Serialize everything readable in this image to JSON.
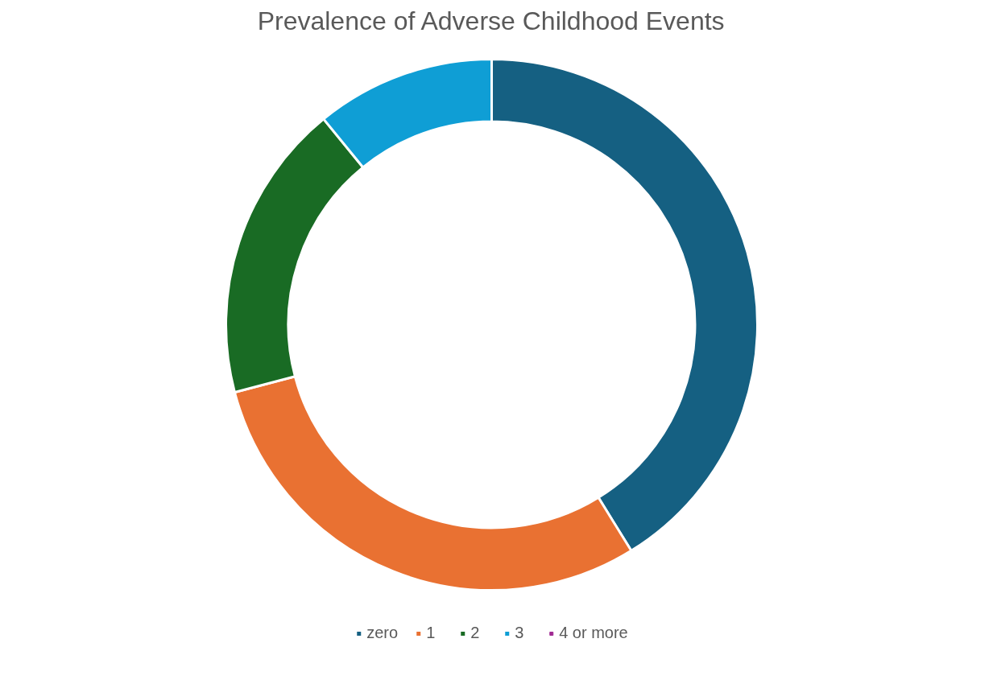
{
  "chart_data": {
    "type": "donut",
    "title": "Prevalence of Adverse Childhood Events",
    "categories": [
      "zero",
      "1",
      "2",
      "3",
      "4 or more"
    ],
    "values": [
      41.2,
      29.7,
      18.2,
      10.9,
      0
    ],
    "colors": [
      "#156082",
      "#e97132",
      "#196b24",
      "#0f9ed5",
      "#a02b93"
    ],
    "legend": "bottom"
  }
}
